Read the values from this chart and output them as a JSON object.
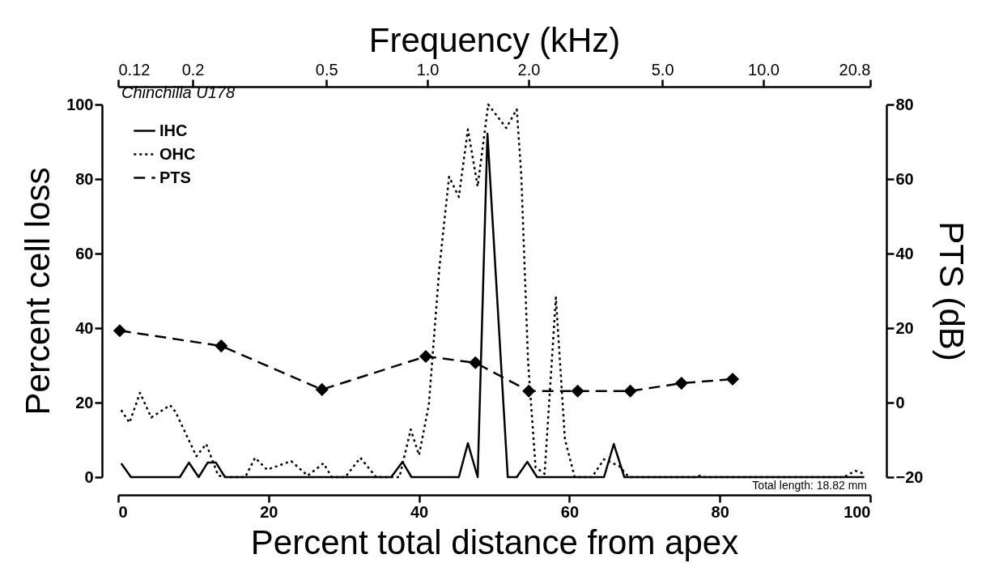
{
  "chart_data": {
    "type": "line",
    "xlabel": "Percent total distance from apex",
    "ylabel": "Percent cell loss",
    "y2label": "PTS (dB)",
    "x2label": "Frequency (kHz)",
    "xlim": [
      0,
      100
    ],
    "xticks": [
      0,
      20,
      40,
      60,
      80,
      100
    ],
    "ylim": [
      0,
      100
    ],
    "yticks": [
      0,
      20,
      40,
      60,
      80,
      100
    ],
    "y2lim": [
      -20,
      80
    ],
    "y2ticks": [
      -20,
      0,
      20,
      40,
      60,
      80
    ],
    "x2lim": [
      0.12,
      20.8
    ],
    "x2ticks": [
      0.12,
      0.2,
      0.5,
      {
        "value": 1,
        "label": "1.0"
      },
      {
        "value": 2,
        "label": "2.0"
      },
      {
        "value": 5,
        "label": "5.0"
      },
      {
        "value": 10,
        "label": "10.0"
      },
      20.8
    ],
    "log": "x2",
    "grid": false,
    "legend": "top left",
    "annotations": [
      "Chinchilla U178",
      "Total length:  18.82 mm"
    ],
    "series": [
      {
        "name": "IHC",
        "color": "#000000",
        "line_style": "solid",
        "marker": "none",
        "x": [
          0.4,
          1.7,
          8.2,
          9.4,
          10.7,
          11.9,
          13.0,
          14.2,
          36.3,
          37.8,
          39.0,
          45.3,
          46.5,
          47.8,
          49.1,
          51.8,
          53.0,
          54.4,
          55.7,
          64.6,
          65.9,
          67.3,
          99.2
        ],
        "values": [
          3.7,
          0,
          0,
          3.9,
          0,
          3.9,
          3.9,
          0,
          0,
          4.1,
          0,
          0,
          9.1,
          0,
          92.2,
          0,
          0,
          4.1,
          0,
          0,
          8.9,
          0,
          0
        ]
      },
      {
        "name": "OHC",
        "color": "#000000",
        "line_style": "dotted",
        "marker": "none",
        "x": [
          0.4,
          1.5,
          2.9,
          4.4,
          6.9,
          7.6,
          10.4,
          11.7,
          13.3,
          14.5,
          16.9,
          18.2,
          19.8,
          23.0,
          25.2,
          27.3,
          28.4,
          30.2,
          32.2,
          34.3,
          37.4,
          38.9,
          40.0,
          41.3,
          42.7,
          44.0,
          45.3,
          46.5,
          47.8,
          49.2,
          51.6,
          53.0,
          53.6,
          54.5,
          55.5,
          56.7,
          58.2,
          59.4,
          60.7,
          63.0,
          64.6,
          66.6,
          67.9,
          76.8,
          77.4,
          78.0,
          96.5,
          98.0,
          99.2
        ],
        "values": [
          18,
          14.6,
          22.6,
          16,
          19.3,
          17.6,
          5.6,
          8.9,
          0.4,
          0,
          0,
          5.2,
          2,
          4.3,
          0.4,
          3.7,
          0,
          0,
          5.2,
          0,
          0,
          12.8,
          5.9,
          19.3,
          56,
          80.6,
          75.2,
          93.3,
          78,
          100,
          93.7,
          98.7,
          81,
          31,
          2.6,
          0.9,
          48.2,
          10.2,
          0,
          0,
          4.8,
          3,
          0,
          0,
          0.4,
          0,
          0,
          1.7,
          0.9
        ]
      },
      {
        "name": "PTS",
        "color": "#000000",
        "line_style": "dashed",
        "marker": "diamond",
        "axis": "y2",
        "x": [
          0.2,
          13.7,
          27.1,
          40.9,
          47.5,
          54.6,
          61.1,
          68.1,
          74.9,
          81.7
        ],
        "values": [
          19.3,
          15.2,
          3.5,
          12.4,
          10.7,
          3.1,
          3.1,
          3.1,
          5.2,
          6.3
        ]
      }
    ]
  }
}
